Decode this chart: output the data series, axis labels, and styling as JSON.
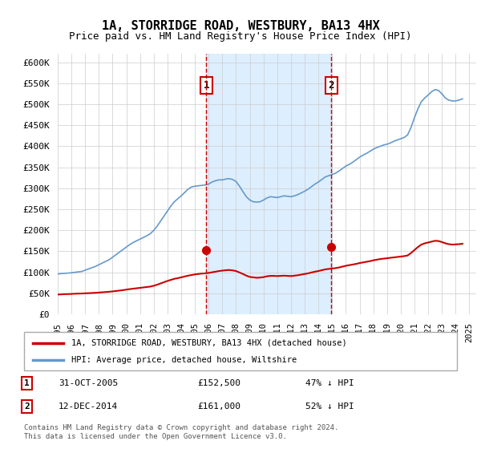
{
  "title": "1A, STORRIDGE ROAD, WESTBURY, BA13 4HX",
  "subtitle": "Price paid vs. HM Land Registry's House Price Index (HPI)",
  "legend_line1": "1A, STORRIDGE ROAD, WESTBURY, BA13 4HX (detached house)",
  "legend_line2": "HPI: Average price, detached house, Wiltshire",
  "footnote": "Contains HM Land Registry data © Crown copyright and database right 2024.\nThis data is licensed under the Open Government Licence v3.0.",
  "sale1_label": "1",
  "sale1_date": "31-OCT-2005",
  "sale1_price": "£152,500",
  "sale1_hpi": "47% ↓ HPI",
  "sale2_label": "2",
  "sale2_date": "12-DEC-2014",
  "sale2_price": "£161,000",
  "sale2_hpi": "52% ↓ HPI",
  "red_line_color": "#cc0000",
  "blue_line_color": "#6699cc",
  "background_color": "#ffffff",
  "shaded_region_color": "#ddeeff",
  "ylabel_color": "#000000",
  "ylim": [
    0,
    620000
  ],
  "yticks": [
    0,
    50000,
    100000,
    150000,
    200000,
    250000,
    300000,
    350000,
    400000,
    450000,
    500000,
    550000,
    600000
  ],
  "ytick_labels": [
    "£0",
    "£50K",
    "£100K",
    "£150K",
    "£200K",
    "£250K",
    "£300K",
    "£350K",
    "£400K",
    "£450K",
    "£500K",
    "£550K",
    "£600K"
  ],
  "xtick_years": [
    "1995",
    "1996",
    "1997",
    "1998",
    "1999",
    "2000",
    "2001",
    "2002",
    "2003",
    "2004",
    "2005",
    "2006",
    "2007",
    "2008",
    "2009",
    "2010",
    "2011",
    "2012",
    "2013",
    "2014",
    "2015",
    "2016",
    "2017",
    "2018",
    "2019",
    "2020",
    "2021",
    "2022",
    "2023",
    "2024",
    "2025"
  ],
  "sale1_x": 2005.83,
  "sale1_y": 152500,
  "sale2_x": 2014.95,
  "sale2_y": 161000,
  "hpi_x": [
    1995,
    1995.25,
    1995.5,
    1995.75,
    1996,
    1996.25,
    1996.5,
    1996.75,
    1997,
    1997.25,
    1997.5,
    1997.75,
    1998,
    1998.25,
    1998.5,
    1998.75,
    1999,
    1999.25,
    1999.5,
    1999.75,
    2000,
    2000.25,
    2000.5,
    2000.75,
    2001,
    2001.25,
    2001.5,
    2001.75,
    2002,
    2002.25,
    2002.5,
    2002.75,
    2003,
    2003.25,
    2003.5,
    2003.75,
    2004,
    2004.25,
    2004.5,
    2004.75,
    2005,
    2005.25,
    2005.5,
    2005.75,
    2006,
    2006.25,
    2006.5,
    2006.75,
    2007,
    2007.25,
    2007.5,
    2007.75,
    2008,
    2008.25,
    2008.5,
    2008.75,
    2009,
    2009.25,
    2009.5,
    2009.75,
    2010,
    2010.25,
    2010.5,
    2010.75,
    2011,
    2011.25,
    2011.5,
    2011.75,
    2012,
    2012.25,
    2012.5,
    2012.75,
    2013,
    2013.25,
    2013.5,
    2013.75,
    2014,
    2014.25,
    2014.5,
    2014.75,
    2015,
    2015.25,
    2015.5,
    2015.75,
    2016,
    2016.25,
    2016.5,
    2016.75,
    2017,
    2017.25,
    2017.5,
    2017.75,
    2018,
    2018.25,
    2018.5,
    2018.75,
    2019,
    2019.25,
    2019.5,
    2019.75,
    2020,
    2020.25,
    2020.5,
    2020.75,
    2021,
    2021.25,
    2021.5,
    2021.75,
    2022,
    2022.25,
    2022.5,
    2022.75,
    2023,
    2023.25,
    2023.5,
    2023.75,
    2024,
    2024.25,
    2024.5
  ],
  "hpi_y": [
    96000,
    97000,
    97500,
    98000,
    99000,
    100000,
    101000,
    102000,
    105000,
    108000,
    111000,
    114000,
    118000,
    122000,
    126000,
    130000,
    136000,
    142000,
    148000,
    154000,
    160000,
    166000,
    171000,
    175000,
    179000,
    183000,
    187000,
    192000,
    200000,
    210000,
    222000,
    234000,
    246000,
    258000,
    268000,
    275000,
    282000,
    290000,
    298000,
    303000,
    305000,
    306000,
    307000,
    308000,
    310000,
    315000,
    318000,
    320000,
    320000,
    322000,
    323000,
    321000,
    316000,
    305000,
    292000,
    280000,
    272000,
    268000,
    267000,
    268000,
    272000,
    277000,
    280000,
    279000,
    278000,
    280000,
    282000,
    281000,
    280000,
    282000,
    285000,
    289000,
    293000,
    298000,
    304000,
    310000,
    315000,
    321000,
    327000,
    330000,
    333000,
    336000,
    341000,
    347000,
    353000,
    357000,
    362000,
    368000,
    374000,
    379000,
    383000,
    388000,
    393000,
    397000,
    400000,
    403000,
    405000,
    408000,
    412000,
    415000,
    418000,
    421000,
    427000,
    445000,
    468000,
    489000,
    506000,
    515000,
    522000,
    530000,
    535000,
    533000,
    525000,
    515000,
    510000,
    508000,
    508000,
    510000,
    513000
  ],
  "red_x": [
    1995,
    1995.25,
    1995.5,
    1995.75,
    1996,
    1996.25,
    1996.5,
    1996.75,
    1997,
    1997.25,
    1997.5,
    1997.75,
    1998,
    1998.25,
    1998.5,
    1998.75,
    1999,
    1999.25,
    1999.5,
    1999.75,
    2000,
    2000.25,
    2000.5,
    2000.75,
    2001,
    2001.25,
    2001.5,
    2001.75,
    2002,
    2002.25,
    2002.5,
    2002.75,
    2003,
    2003.25,
    2003.5,
    2003.75,
    2004,
    2004.25,
    2004.5,
    2004.75,
    2005,
    2005.25,
    2005.5,
    2005.75,
    2006,
    2006.25,
    2006.5,
    2006.75,
    2007,
    2007.25,
    2007.5,
    2007.75,
    2008,
    2008.25,
    2008.5,
    2008.75,
    2009,
    2009.25,
    2009.5,
    2009.75,
    2010,
    2010.25,
    2010.5,
    2010.75,
    2011,
    2011.25,
    2011.5,
    2011.75,
    2012,
    2012.25,
    2012.5,
    2012.75,
    2013,
    2013.25,
    2013.5,
    2013.75,
    2014,
    2014.25,
    2014.5,
    2014.75,
    2015,
    2015.25,
    2015.5,
    2015.75,
    2016,
    2016.25,
    2016.5,
    2016.75,
    2017,
    2017.25,
    2017.5,
    2017.75,
    2018,
    2018.25,
    2018.5,
    2018.75,
    2019,
    2019.25,
    2019.5,
    2019.75,
    2020,
    2020.25,
    2020.5,
    2020.75,
    2021,
    2021.25,
    2021.5,
    2021.75,
    2022,
    2022.25,
    2022.5,
    2022.75,
    2023,
    2023.25,
    2023.5,
    2023.75,
    2024,
    2024.25,
    2024.5
  ],
  "red_y": [
    47000,
    47500,
    48000,
    48200,
    48500,
    49000,
    49300,
    49500,
    50000,
    50300,
    50800,
    51200,
    51800,
    52400,
    53000,
    53600,
    54500,
    55500,
    56500,
    57500,
    58800,
    60000,
    61000,
    62000,
    63000,
    64000,
    65000,
    66000,
    68000,
    70500,
    73500,
    76500,
    79500,
    82000,
    84500,
    86000,
    88000,
    90000,
    92000,
    93500,
    95000,
    96000,
    97000,
    97500,
    98500,
    100000,
    101500,
    103000,
    104000,
    105000,
    105500,
    104500,
    103000,
    99500,
    96000,
    92000,
    89000,
    88000,
    87000,
    87500,
    88500,
    90500,
    91500,
    91500,
    91000,
    91500,
    92000,
    91500,
    91000,
    92000,
    93000,
    94500,
    96000,
    97500,
    99500,
    101500,
    103000,
    105000,
    107000,
    108000,
    109000,
    110000,
    111500,
    113500,
    115500,
    117000,
    118500,
    120000,
    122000,
    123500,
    125000,
    126500,
    128500,
    130000,
    131500,
    132500,
    133500,
    134500,
    135500,
    136500,
    137500,
    138500,
    140000,
    146000,
    153000,
    160000,
    166000,
    169000,
    171000,
    173000,
    175000,
    174500,
    172000,
    169000,
    167000,
    166000,
    166500,
    167000,
    168000
  ],
  "vline1_x": 2005.83,
  "vline2_x": 2014.95,
  "xmin": 1995,
  "xmax": 2025.5
}
